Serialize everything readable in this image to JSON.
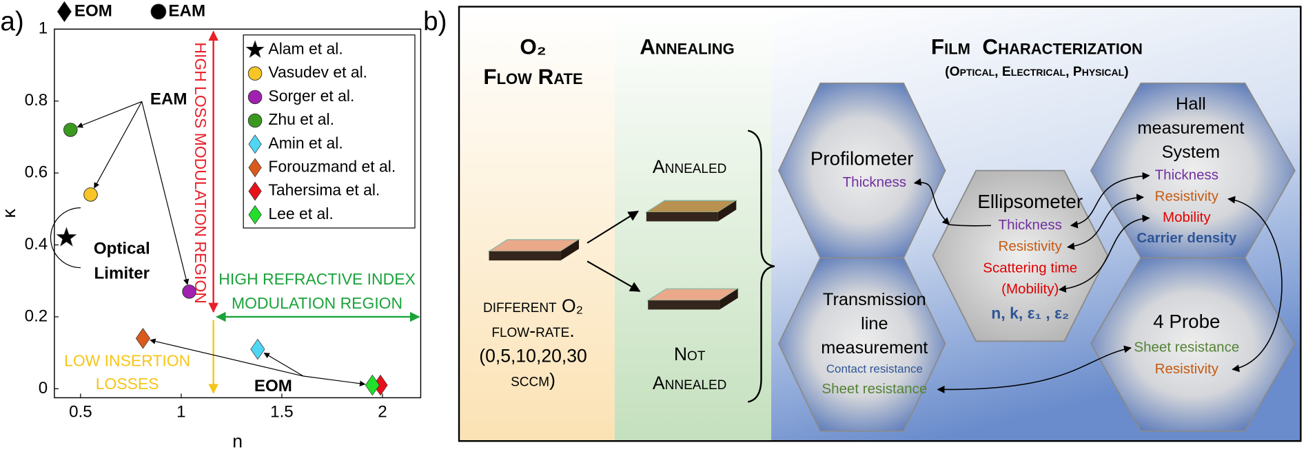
{
  "panel_labels": [
    "a)",
    "b)"
  ],
  "chart_data": {
    "type": "scatter",
    "xlabel": "n",
    "ylabel": "κ",
    "xlim": [
      0.37,
      2.19
    ],
    "ylim": [
      -0.025,
      1
    ],
    "xticks": [
      0.5,
      1,
      1.5,
      2
    ],
    "yticks": [
      0,
      0.2,
      0.4,
      0.6,
      0.8,
      1
    ],
    "legend": "upper right",
    "marker_key": [
      {
        "marker": "diamond",
        "label": "EOM"
      },
      {
        "marker": "circle",
        "label": "EAM"
      }
    ],
    "series": [
      {
        "name": "Alam et al.",
        "color": "#000000",
        "marker": "star",
        "x": [
          0.43
        ],
        "values": [
          0.42
        ]
      },
      {
        "name": "Vasudev et al.",
        "color": "#f7c626",
        "marker": "circle",
        "x": [
          0.55
        ],
        "values": [
          0.54
        ]
      },
      {
        "name": "Sorger et al.",
        "color": "#a020b0",
        "marker": "circle",
        "x": [
          1.04
        ],
        "values": [
          0.27
        ]
      },
      {
        "name": "Zhu et al.",
        "color": "#3a9a20",
        "marker": "circle",
        "x": [
          0.45
        ],
        "values": [
          0.72
        ]
      },
      {
        "name": "Amin et al.",
        "color": "#4fd6f5",
        "marker": "diamond",
        "x": [
          1.38
        ],
        "values": [
          0.11
        ]
      },
      {
        "name": "Forouzmand et al.",
        "color": "#d95a1c",
        "marker": "diamond",
        "x": [
          0.81
        ],
        "values": [
          0.14
        ]
      },
      {
        "name": "Tahersima et al.",
        "color": "#e8101a",
        "marker": "diamond",
        "x": [
          1.99
        ],
        "values": [
          0.01
        ]
      },
      {
        "name": "Lee et al.",
        "color": "#22e02a",
        "marker": "diamond",
        "x": [
          1.95
        ],
        "values": [
          0.01
        ]
      }
    ],
    "annotations": {
      "eam_label": "EAM",
      "optical_limiter": [
        "Optical",
        "Limiter"
      ],
      "eom_label": "EOM",
      "high_loss_region": "HIGH LOSS MODULATION REGION",
      "high_index_region": [
        "HIGH REFRACTIVE INDEX",
        "MODULATION REGION"
      ],
      "low_loss_region": [
        "LOW INSERTION",
        "LOSSES"
      ]
    },
    "region_boundary": {
      "x": 1.16,
      "y": 0.2
    }
  },
  "diagram": {
    "columns": [
      {
        "title": [
          "O₂",
          "Flow Rate"
        ]
      },
      {
        "title": [
          "Annealing"
        ]
      },
      {
        "title": [
          "Film  Characterization"
        ],
        "subtitle": "(Optical, Electrical, Physical)"
      }
    ],
    "samples": {
      "input_lines": [
        "different O₂",
        "flow-rate.",
        "(0,5,10,20,30",
        "sccm)"
      ],
      "annealed": [
        "Annealed"
      ],
      "not_annealed": [
        "Not",
        "Annealed"
      ]
    },
    "techniques": [
      {
        "title": [
          "Profilometer"
        ],
        "properties": [
          "Thickness"
        ]
      },
      {
        "title": [
          "Ellipsometer"
        ],
        "properties": [
          "Thickness",
          "Resistivity",
          "Scattering time",
          "(Mobility)",
          "n, k, ε₁ , ε₂"
        ]
      },
      {
        "title": [
          "Hall",
          "measurement",
          "System"
        ],
        "properties": [
          "Thickness",
          "Resistivity",
          "Mobility",
          "Carrier density"
        ]
      },
      {
        "title": [
          "Transmission",
          "line",
          "measurement"
        ],
        "properties": [
          "Contact resistance",
          "Sheet resistance"
        ]
      },
      {
        "title": [
          "4 Probe"
        ],
        "properties": [
          "Sheet resistance",
          "Resistivity"
        ]
      }
    ]
  }
}
